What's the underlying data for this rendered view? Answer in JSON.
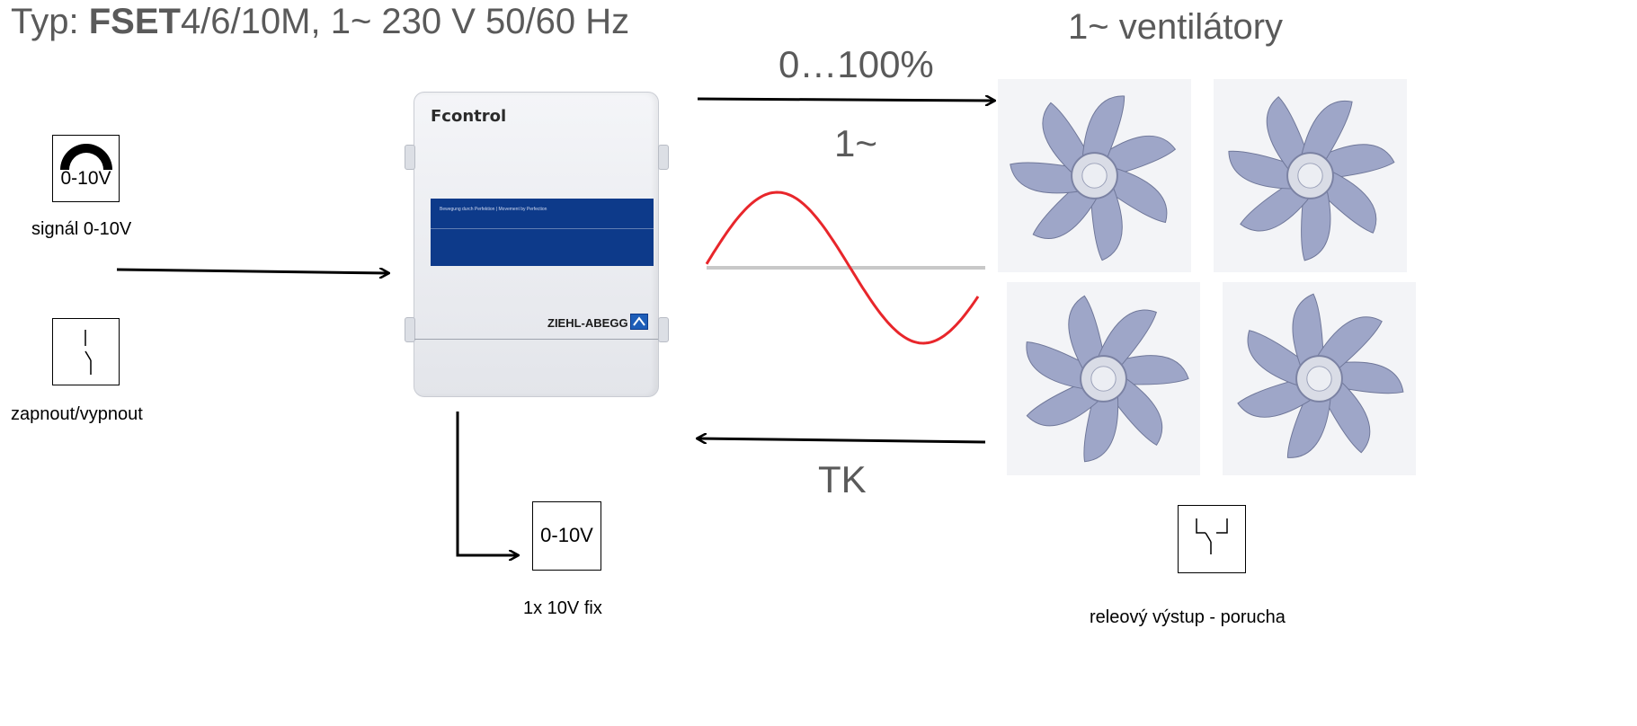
{
  "title": {
    "prefix": "Typ: ",
    "bold": "FSET",
    "rest": "4/6/10M, 1~ 230 V 50/60 Hz"
  },
  "fans": {
    "heading": "1~ ventilátory"
  },
  "output": {
    "range_label": "0…100%",
    "phase_label": "1~"
  },
  "feedback": {
    "label": "TK"
  },
  "inputs": {
    "signal_icon_text": "0-10V",
    "signal_label": "signál 0-10V",
    "switch_label": "zapnout/vypnout"
  },
  "fixed_output": {
    "icon_text": "0-10V",
    "label": "1x 10V fix"
  },
  "relay": {
    "label": "releový výstup - porucha"
  },
  "controller": {
    "name": "Fcontrol",
    "tagline": "Bewegung durch Perfektion | Movement by Perfection",
    "brand": "ZIEHL-ABEGG"
  },
  "colors": {
    "sine": "#e8262b",
    "band": "#0d3a8a",
    "text_gray": "#5a5a5a",
    "fan": "#9ea6c8"
  }
}
